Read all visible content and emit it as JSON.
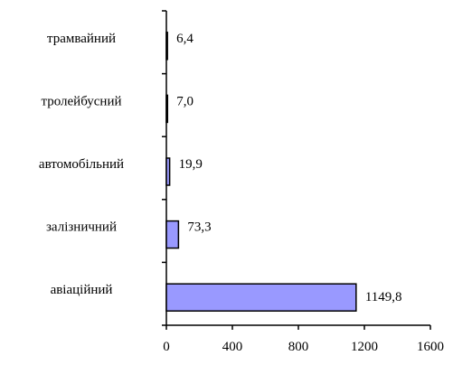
{
  "chart_data": {
    "type": "bar",
    "orientation": "horizontal",
    "categories": [
      "трамвайний",
      "тролейбусний",
      "автомобільний",
      "залізничний",
      "авіаційний"
    ],
    "values": [
      6.4,
      7.0,
      19.9,
      73.3,
      1149.8
    ],
    "value_labels": [
      "6,4",
      "7,0",
      "19,9",
      "73,3",
      "1149,8"
    ],
    "x_ticks": [
      0,
      400,
      800,
      1200,
      1600
    ],
    "x_tick_labels": [
      "0",
      "400",
      "800",
      "1200",
      "1600"
    ],
    "xlim": [
      0,
      1600
    ],
    "title": "",
    "xlabel": "",
    "ylabel": "",
    "grid": false,
    "legend": "none",
    "bar_color": "#9999ff",
    "bar_edge_color": "#000000"
  }
}
